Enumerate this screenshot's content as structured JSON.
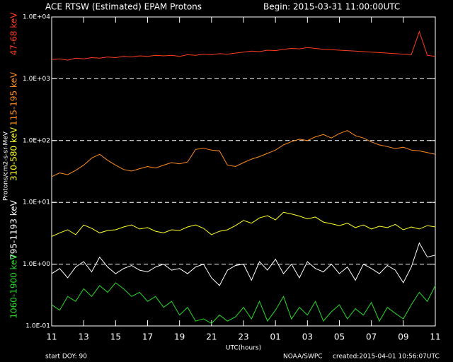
{
  "chart_data": {
    "type": "line",
    "title": "ACE RTSW (Estimated) EPAM Protons",
    "subtitle": "Begin: 2015-03-31 11:00:00UTC",
    "y_label": "Protons/cm2-s-sr-MeV",
    "x_label": "UTC(hours)",
    "footer_left": "start DOY:  90",
    "footer_center": "NOAA/SWPC",
    "footer_right": "created:2015-04-01 10:56:07UTC",
    "log_scale": true,
    "grid": true,
    "xlim": [
      0,
      24
    ],
    "ylim": [
      0.1,
      10000
    ],
    "xticks": [
      {
        "value": 0,
        "label": "11"
      },
      {
        "value": 2,
        "label": "13"
      },
      {
        "value": 4,
        "label": "15"
      },
      {
        "value": 6,
        "label": "17"
      },
      {
        "value": 8,
        "label": "19"
      },
      {
        "value": 10,
        "label": "21"
      },
      {
        "value": 12,
        "label": "23"
      },
      {
        "value": 14,
        "label": "01"
      },
      {
        "value": 16,
        "label": "03"
      },
      {
        "value": 18,
        "label": "05"
      },
      {
        "value": 20,
        "label": "07"
      },
      {
        "value": 22,
        "label": "09"
      },
      {
        "value": 24,
        "label": "11"
      }
    ],
    "yticks": [
      {
        "value": 0.1,
        "label": "1.0E-01"
      },
      {
        "value": 1,
        "label": "1.0E+00"
      },
      {
        "value": 10,
        "label": "1.0E+01"
      },
      {
        "value": 100,
        "label": "1.0E+02"
      },
      {
        "value": 1000,
        "label": "1.0E+03"
      },
      {
        "value": 10000,
        "label": "1.0E+04"
      }
    ],
    "x": [
      0,
      0.5,
      1,
      1.5,
      2,
      2.5,
      3,
      3.5,
      4,
      4.5,
      5,
      5.5,
      6,
      6.5,
      7,
      7.5,
      8,
      8.5,
      9,
      9.5,
      10,
      10.5,
      11,
      11.5,
      12,
      12.5,
      13,
      13.5,
      14,
      14.5,
      15,
      15.5,
      16,
      16.5,
      17,
      17.5,
      18,
      18.5,
      19,
      19.5,
      20,
      20.5,
      21,
      21.5,
      22,
      22.5,
      23,
      23.5,
      24
    ],
    "series": [
      {
        "name": "47-68 keV",
        "color": "#ff3c1e",
        "values": [
          2050,
          2100,
          2000,
          2150,
          2100,
          2200,
          2150,
          2250,
          2200,
          2300,
          2250,
          2350,
          2300,
          2400,
          2350,
          2400,
          2300,
          2450,
          2400,
          2500,
          2450,
          2550,
          2500,
          2600,
          2700,
          2800,
          2750,
          2900,
          2850,
          3000,
          3100,
          3050,
          3200,
          3100,
          3000,
          2950,
          2900,
          2850,
          2800,
          2750,
          2700,
          2650,
          2600,
          2550,
          2500,
          2450,
          5800,
          2400,
          2300
        ]
      },
      {
        "name": "115-195 keV",
        "color": "#ff8c1e",
        "values": [
          26,
          30,
          28,
          33,
          40,
          52,
          60,
          48,
          40,
          34,
          32,
          35,
          38,
          36,
          40,
          44,
          42,
          45,
          72,
          75,
          70,
          68,
          40,
          38,
          44,
          50,
          55,
          62,
          70,
          85,
          96,
          105,
          100,
          115,
          125,
          110,
          130,
          145,
          120,
          110,
          95,
          85,
          80,
          74,
          78,
          70,
          68,
          64,
          60
        ]
      },
      {
        "name": "310-580 keV",
        "color": "#ffff28",
        "values": [
          2.8,
          3.2,
          3.6,
          3.0,
          4.3,
          3.8,
          3.2,
          3.5,
          3.6,
          4.0,
          4.3,
          3.7,
          3.9,
          3.4,
          3.2,
          3.6,
          3.5,
          4.0,
          4.3,
          3.8,
          3.0,
          3.4,
          3.6,
          4.2,
          5.1,
          4.6,
          5.6,
          6.1,
          5.2,
          6.9,
          6.5,
          6.0,
          5.4,
          5.8,
          4.8,
          4.5,
          4.2,
          4.6,
          3.9,
          4.3,
          3.7,
          4.1,
          3.9,
          4.4,
          3.6,
          4.0,
          3.7,
          4.2,
          4.0
        ]
      },
      {
        "name": "795-1193 keV",
        "color": "#ffffff",
        "values": [
          0.7,
          0.85,
          0.6,
          0.9,
          1.1,
          0.75,
          1.3,
          0.9,
          0.7,
          0.85,
          0.95,
          0.8,
          0.75,
          0.9,
          1.0,
          0.8,
          0.85,
          0.7,
          0.9,
          1.0,
          0.6,
          0.45,
          0.8,
          0.95,
          1.0,
          0.55,
          1.1,
          0.8,
          1.2,
          0.7,
          1.0,
          0.6,
          1.1,
          0.85,
          0.75,
          1.0,
          0.7,
          0.9,
          0.55,
          1.0,
          0.85,
          0.7,
          0.95,
          0.8,
          0.5,
          0.9,
          2.2,
          1.3,
          1.4
        ]
      },
      {
        "name": "1060-1900 keV",
        "color": "#28dc28",
        "values": [
          0.22,
          0.18,
          0.3,
          0.25,
          0.4,
          0.3,
          0.45,
          0.35,
          0.5,
          0.4,
          0.3,
          0.35,
          0.25,
          0.3,
          0.2,
          0.25,
          0.15,
          0.2,
          0.12,
          0.13,
          0.11,
          0.15,
          0.12,
          0.14,
          0.2,
          0.13,
          0.25,
          0.12,
          0.18,
          0.3,
          0.13,
          0.2,
          0.15,
          0.25,
          0.12,
          0.17,
          0.22,
          0.13,
          0.19,
          0.15,
          0.24,
          0.12,
          0.2,
          0.16,
          0.13,
          0.22,
          0.35,
          0.25,
          0.45
        ]
      }
    ]
  }
}
